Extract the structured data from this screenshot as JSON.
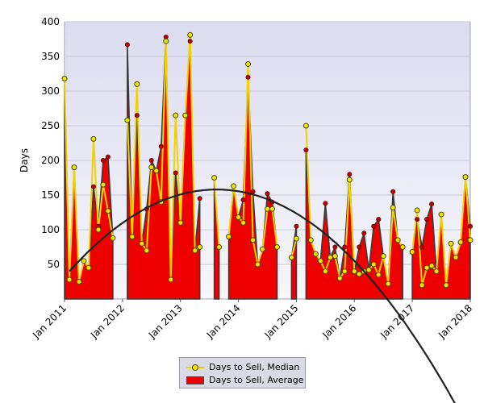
{
  "chart_data": {
    "type": "area",
    "title": "",
    "ylabel": "Days",
    "xlabel": "",
    "ylim": [
      0,
      400
    ],
    "yticks": [
      50,
      100,
      150,
      200,
      250,
      300,
      350,
      400
    ],
    "xlim": [
      0,
      84
    ],
    "xticks": [
      {
        "x": 0,
        "label": "Jan 2011"
      },
      {
        "x": 12,
        "label": "Jan 2012"
      },
      {
        "x": 24,
        "label": "Jan 2013"
      },
      {
        "x": 36,
        "label": "Jan 2014"
      },
      {
        "x": 48,
        "label": "Jan 2015"
      },
      {
        "x": 60,
        "label": "Jan 2016"
      },
      {
        "x": 72,
        "label": "Jan 2017"
      },
      {
        "x": 84,
        "label": "Jan 2018"
      }
    ],
    "grid": "horizontal",
    "legend_position": "bottom",
    "colors": {
      "median_line": "#f2d100",
      "median_marker": "#f2e400",
      "average_fill": "#ee0000",
      "average_marker": "#c00000",
      "trend": "#222222",
      "plot_bg": "#e9e9f6"
    },
    "series": [
      {
        "name": "Days to Sell, Median",
        "kind": "line",
        "values": [
          318,
          28,
          190,
          25,
          55,
          45,
          231,
          100,
          165,
          127,
          88,
          null,
          null,
          258,
          90,
          310,
          80,
          70,
          190,
          185,
          140,
          372,
          28,
          265,
          110,
          265,
          381,
          70,
          75,
          null,
          null,
          175,
          75,
          null,
          90,
          163,
          118,
          110,
          339,
          85,
          50,
          72,
          130,
          130,
          75,
          null,
          null,
          60,
          87,
          null,
          250,
          85,
          65,
          55,
          40,
          60,
          62,
          30,
          40,
          172,
          40,
          36,
          40,
          42,
          50,
          35,
          62,
          22,
          132,
          85,
          75,
          null,
          68,
          128,
          20,
          45,
          48,
          40,
          122,
          20,
          80,
          60,
          82,
          176,
          85
        ]
      },
      {
        "name": "Days to Sell, Average",
        "kind": "area",
        "values": [
          318,
          28,
          190,
          25,
          55,
          45,
          162,
          105,
          200,
          205,
          88,
          null,
          null,
          367,
          90,
          265,
          80,
          130,
          200,
          185,
          220,
          378,
          28,
          182,
          110,
          265,
          372,
          70,
          145,
          null,
          null,
          175,
          75,
          null,
          90,
          163,
          118,
          143,
          320,
          155,
          50,
          72,
          152,
          140,
          75,
          null,
          null,
          60,
          105,
          null,
          215,
          85,
          65,
          55,
          138,
          60,
          75,
          30,
          75,
          180,
          40,
          75,
          95,
          42,
          105,
          115,
          62,
          22,
          155,
          85,
          75,
          null,
          68,
          115,
          75,
          115,
          137,
          40,
          122,
          20,
          80,
          60,
          82,
          176,
          105
        ]
      },
      {
        "name": "",
        "kind": "trend",
        "values": []
      }
    ],
    "trend": {
      "type": "quadratic",
      "x_range": [
        1,
        81
      ],
      "vertex": {
        "x": 31.5,
        "y": 158
      },
      "start_y": 40
    }
  },
  "legend": {
    "median_label": "Days to Sell, Median",
    "average_label": "Days to Sell, Average"
  }
}
